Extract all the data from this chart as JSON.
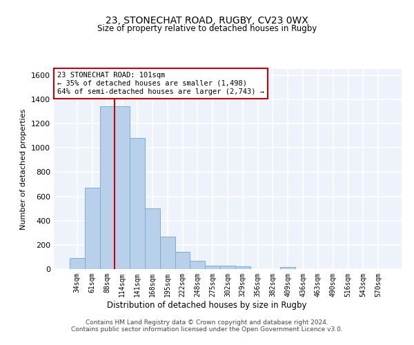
{
  "title_line1": "23, STONECHAT ROAD, RUGBY, CV23 0WX",
  "title_line2": "Size of property relative to detached houses in Rugby",
  "xlabel": "Distribution of detached houses by size in Rugby",
  "ylabel": "Number of detached properties",
  "bar_labels": [
    "34sqm",
    "61sqm",
    "88sqm",
    "114sqm",
    "141sqm",
    "168sqm",
    "195sqm",
    "222sqm",
    "248sqm",
    "275sqm",
    "302sqm",
    "329sqm",
    "356sqm",
    "382sqm",
    "409sqm",
    "436sqm",
    "463sqm",
    "490sqm",
    "516sqm",
    "543sqm",
    "570sqm"
  ],
  "bar_heights": [
    90,
    670,
    1340,
    1340,
    1080,
    500,
    270,
    140,
    70,
    30,
    30,
    20,
    0,
    0,
    15,
    0,
    0,
    0,
    0,
    0,
    0
  ],
  "bar_color": "#b8d0ea",
  "bar_edge_color": "#7aadd4",
  "background_color": "#eef2fa",
  "grid_color": "#ffffff",
  "vline_color": "#cc0000",
  "annotation_text": "23 STONECHAT ROAD: 101sqm\n← 35% of detached houses are smaller (1,498)\n64% of semi-detached houses are larger (2,743) →",
  "annotation_box_color": "#ffffff",
  "annotation_box_edge": "#cc0000",
  "ylim": [
    0,
    1650
  ],
  "yticks": [
    0,
    200,
    400,
    600,
    800,
    1000,
    1200,
    1400,
    1600
  ],
  "footer": "Contains HM Land Registry data © Crown copyright and database right 2024.\nContains public sector information licensed under the Open Government Licence v3.0."
}
